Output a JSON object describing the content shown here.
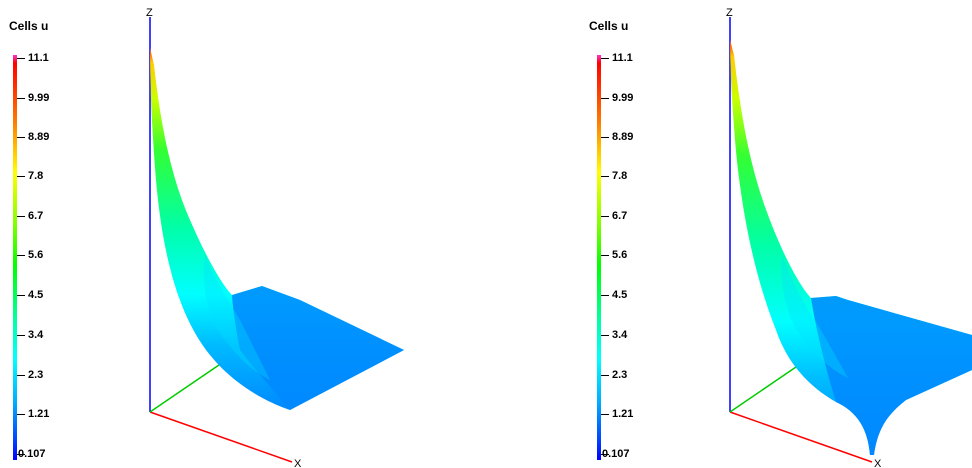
{
  "panels": [
    {
      "legend_title": "Cells u",
      "ticks": [
        "11.1",
        "9.99",
        "8.89",
        "7.8",
        "6.7",
        "5.6",
        "4.5",
        "3.4",
        "2.3",
        "1.21",
        "0.107"
      ],
      "axes": {
        "z": "Z",
        "x": "X"
      }
    },
    {
      "legend_title": "Cells u",
      "ticks": [
        "11.1",
        "9.99",
        "8.89",
        "7.8",
        "6.7",
        "5.6",
        "4.5",
        "3.4",
        "2.3",
        "1.21",
        "0.107"
      ],
      "axes": {
        "z": "Z",
        "x": "X"
      }
    }
  ],
  "colormap": {
    "min_color": "#0000ff",
    "max_color": "#ff0000",
    "top_cap_color": "#ff33cc"
  },
  "axis_colors": {
    "z": "#0000ff",
    "x": "#ff0000",
    "y": "#00cc00"
  }
}
